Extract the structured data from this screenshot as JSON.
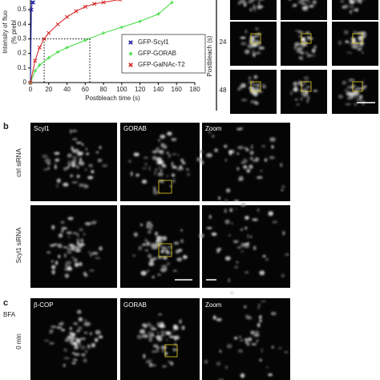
{
  "chart_data": {
    "type": "line",
    "ylabel": [
      "Intensity of fluo",
      "(% prebl"
    ],
    "xlabel": "Postbleach time (s)",
    "xlim": [
      0,
      180
    ],
    "xticks": [
      0,
      20,
      40,
      60,
      80,
      100,
      120,
      140,
      160,
      180
    ],
    "ylim": [
      0,
      0.55
    ],
    "yticks": [
      0,
      0.1,
      0.2,
      0.3,
      0.4,
      0.5
    ],
    "hline": 0.3,
    "vlines": [
      15,
      65
    ],
    "legend": "lower right",
    "series": [
      {
        "name": "GFP-Scyl1",
        "color": "#1a1aa8",
        "marker": "x",
        "x": [
          0,
          1,
          2,
          3
        ],
        "values": [
          0,
          0.5,
          0.55,
          0.55
        ]
      },
      {
        "name": "GFP-GORAB",
        "color": "#3ddc3d",
        "marker": "+",
        "x": [
          0,
          5,
          10,
          20,
          30,
          40,
          60,
          80,
          100,
          120,
          140,
          155
        ],
        "values": [
          0,
          0.08,
          0.12,
          0.17,
          0.21,
          0.24,
          0.29,
          0.34,
          0.38,
          0.42,
          0.47,
          0.55
        ]
      },
      {
        "name": "GFP-GalNAc-T2",
        "color": "#d42020",
        "marker": "x",
        "x": [
          0,
          5,
          10,
          15,
          20,
          30,
          40,
          50,
          60,
          70,
          80,
          98
        ],
        "values": [
          0,
          0.15,
          0.24,
          0.3,
          0.34,
          0.4,
          0.45,
          0.49,
          0.52,
          0.54,
          0.55,
          0.57
        ]
      }
    ]
  },
  "panels": {
    "a": {
      "axis_label": "Postbleach (s)",
      "rows": [
        "24",
        "48"
      ]
    },
    "b": {
      "label": "b",
      "columns": [
        "Scyl1",
        "GORAB",
        "Zoom"
      ],
      "rows": [
        "ctrl siRNA",
        "Scyl1 siRNA"
      ]
    },
    "c": {
      "label": "c",
      "condition": "BFA",
      "columns": [
        "β-COP",
        "GORAB",
        "Zoom"
      ],
      "rows": [
        "0 min"
      ]
    }
  }
}
